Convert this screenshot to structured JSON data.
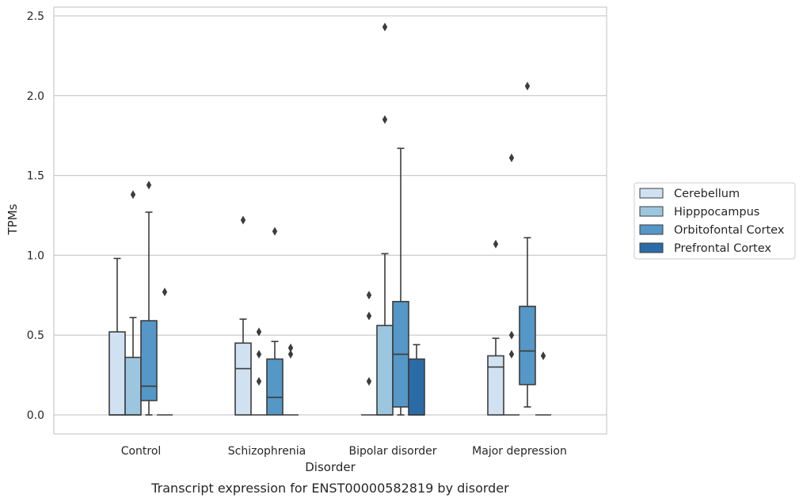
{
  "chart_data": {
    "type": "box",
    "xlabel": "Disorder",
    "ylabel": "TPMs",
    "caption": "Transcript expression for ENST00000582819 by disorder",
    "ylim": [
      -0.12,
      2.56
    ],
    "yticks": [
      0.0,
      0.5,
      1.0,
      1.5,
      2.0,
      2.5
    ],
    "ytick_labels": [
      "0.0",
      "0.5",
      "1.0",
      "1.5",
      "2.0",
      "2.5"
    ],
    "grid": true,
    "legend_position": "right",
    "categories": [
      "Control",
      "Schizophrenia",
      "Bipolar disorder",
      "Major depression"
    ],
    "series": [
      {
        "name": "Cerebellum",
        "color": "#d0e1f2",
        "boxes": [
          {
            "q1": 0.0,
            "median": 0.0,
            "q3": 0.52,
            "whislo": 0.0,
            "whishi": 0.98,
            "fliers": []
          },
          {
            "q1": 0.0,
            "median": 0.29,
            "q3": 0.45,
            "whislo": 0.0,
            "whishi": 0.6,
            "fliers": [
              1.22
            ]
          },
          {
            "q1": 0.0,
            "median": 0.0,
            "q3": 0.0,
            "whislo": 0.0,
            "whishi": 0.0,
            "fliers": [
              0.75,
              0.62,
              0.21
            ]
          },
          {
            "q1": 0.0,
            "median": 0.3,
            "q3": 0.37,
            "whislo": 0.0,
            "whishi": 0.48,
            "fliers": [
              1.07
            ]
          }
        ]
      },
      {
        "name": "Hipppocampus",
        "color": "#9cc6df",
        "boxes": [
          {
            "q1": 0.0,
            "median": 0.0,
            "q3": 0.36,
            "whislo": 0.0,
            "whishi": 0.61,
            "fliers": [
              1.38
            ]
          },
          {
            "q1": 0.0,
            "median": 0.0,
            "q3": 0.0,
            "whislo": 0.0,
            "whishi": 0.0,
            "fliers": [
              0.52,
              0.38,
              0.21
            ]
          },
          {
            "q1": 0.0,
            "median": 0.0,
            "q3": 0.56,
            "whislo": 0.0,
            "whishi": 1.01,
            "fliers": [
              2.43,
              1.85
            ]
          },
          {
            "q1": 0.0,
            "median": 0.0,
            "q3": 0.0,
            "whislo": 0.0,
            "whishi": 0.0,
            "fliers": [
              1.61,
              0.5,
              0.38
            ]
          }
        ]
      },
      {
        "name": "Orbitofontal Cortex",
        "color": "#5597c6",
        "boxes": [
          {
            "q1": 0.09,
            "median": 0.18,
            "q3": 0.59,
            "whislo": 0.0,
            "whishi": 1.27,
            "fliers": [
              1.44
            ]
          },
          {
            "q1": 0.0,
            "median": 0.11,
            "q3": 0.35,
            "whislo": 0.0,
            "whishi": 0.46,
            "fliers": [
              1.15
            ]
          },
          {
            "q1": 0.05,
            "median": 0.38,
            "q3": 0.71,
            "whislo": 0.0,
            "whishi": 1.67,
            "fliers": []
          },
          {
            "q1": 0.19,
            "median": 0.4,
            "q3": 0.68,
            "whislo": 0.05,
            "whishi": 1.11,
            "fliers": [
              2.06
            ]
          }
        ]
      },
      {
        "name": "Prefrontal Cortex",
        "color": "#2b6ca8",
        "boxes": [
          {
            "q1": 0.0,
            "median": 0.0,
            "q3": 0.0,
            "whislo": 0.0,
            "whishi": 0.0,
            "fliers": [
              0.77
            ]
          },
          {
            "q1": 0.0,
            "median": 0.0,
            "q3": 0.0,
            "whislo": 0.0,
            "whishi": 0.0,
            "fliers": [
              0.42,
              0.38
            ]
          },
          {
            "q1": 0.0,
            "median": 0.0,
            "q3": 0.35,
            "whislo": 0.0,
            "whishi": 0.44,
            "fliers": []
          },
          {
            "q1": 0.0,
            "median": 0.0,
            "q3": 0.0,
            "whislo": 0.0,
            "whishi": 0.0,
            "fliers": [
              0.37
            ]
          }
        ]
      }
    ]
  }
}
